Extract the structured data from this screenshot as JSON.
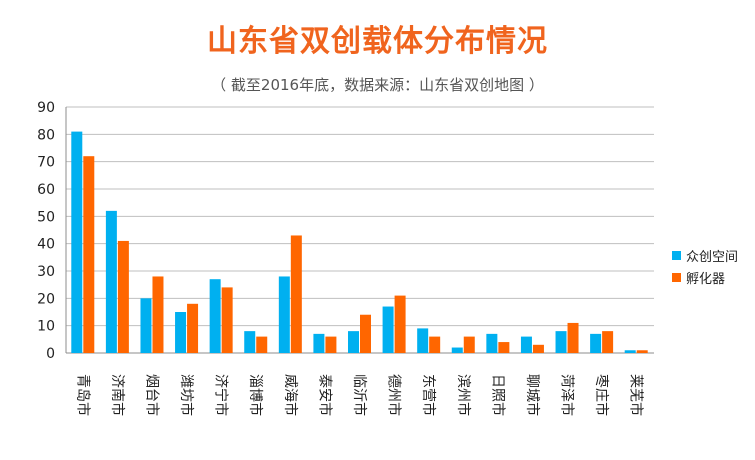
{
  "chart_data": {
    "type": "bar",
    "title": "山东省双创载体分布情况",
    "subtitle": "（ 截至2016年底，数据来源：山东省双创地图 ）",
    "categories": [
      "青岛市",
      "济南市",
      "烟台市",
      "潍坊市",
      "济宁市",
      "淄博市",
      "威海市",
      "泰安市",
      "临沂市",
      "德州市",
      "东营市",
      "滨州市",
      "日照市",
      "聊城市",
      "菏泽市",
      "枣庄市",
      "莱芜市"
    ],
    "series": [
      {
        "name": "众创空间",
        "color": "#00b0f0",
        "values": [
          81,
          52,
          20,
          15,
          27,
          8,
          28,
          7,
          8,
          17,
          9,
          2,
          7,
          6,
          8,
          7,
          1
        ]
      },
      {
        "name": "孵化器",
        "color": "#ff6600",
        "values": [
          72,
          41,
          28,
          18,
          24,
          6,
          43,
          6,
          14,
          21,
          6,
          6,
          4,
          3,
          11,
          8,
          1
        ]
      }
    ],
    "ylim": [
      0,
      90
    ],
    "yticks": [
      0,
      10,
      20,
      30,
      40,
      50,
      60,
      70,
      80,
      90
    ],
    "grid": true,
    "legend_position": "right"
  }
}
